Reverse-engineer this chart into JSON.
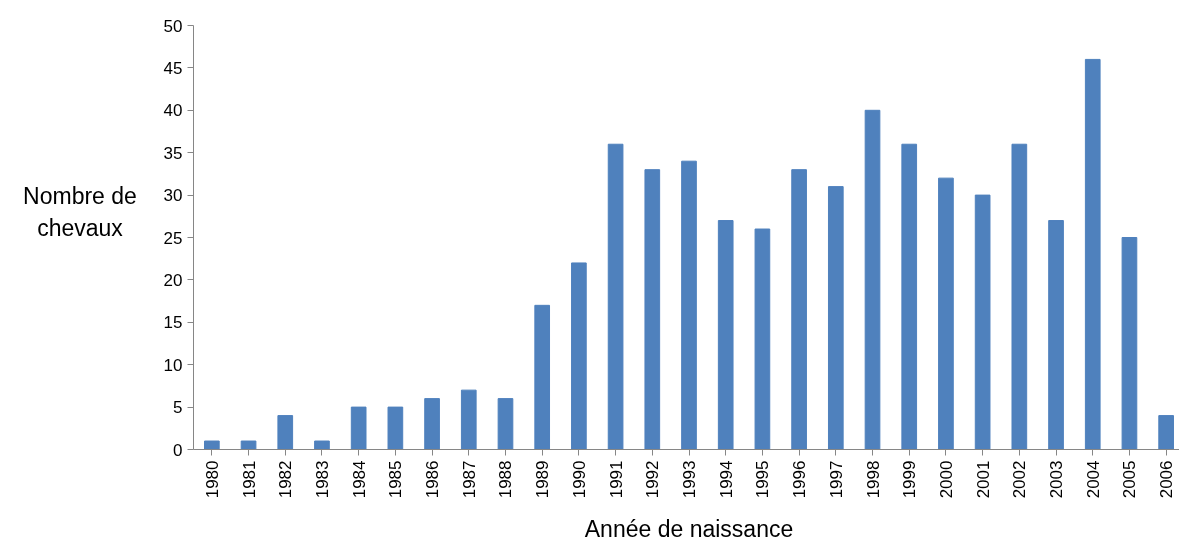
{
  "chart_data": {
    "type": "bar",
    "xlabel": "Année de naissance",
    "ylabel": "Nombre de chevaux",
    "categories": [
      "1980",
      "1981",
      "1982",
      "1983",
      "1984",
      "1985",
      "1986",
      "1987",
      "1988",
      "1989",
      "1990",
      "1991",
      "1992",
      "1993",
      "1994",
      "1995",
      "1996",
      "1997",
      "1998",
      "1999",
      "2000",
      "2001",
      "2002",
      "2003",
      "2004",
      "2005",
      "2006"
    ],
    "values": [
      1,
      1,
      4,
      1,
      5,
      5,
      6,
      7,
      6,
      17,
      22,
      36,
      33,
      34,
      27,
      26,
      33,
      31,
      40,
      36,
      32,
      30,
      36,
      27,
      46,
      25,
      4
    ],
    "color": "#4f81bd",
    "ylim": [
      0,
      50
    ],
    "yticks": [
      0,
      5,
      10,
      15,
      20,
      25,
      30,
      35,
      40,
      45,
      50
    ],
    "grid": false
  }
}
